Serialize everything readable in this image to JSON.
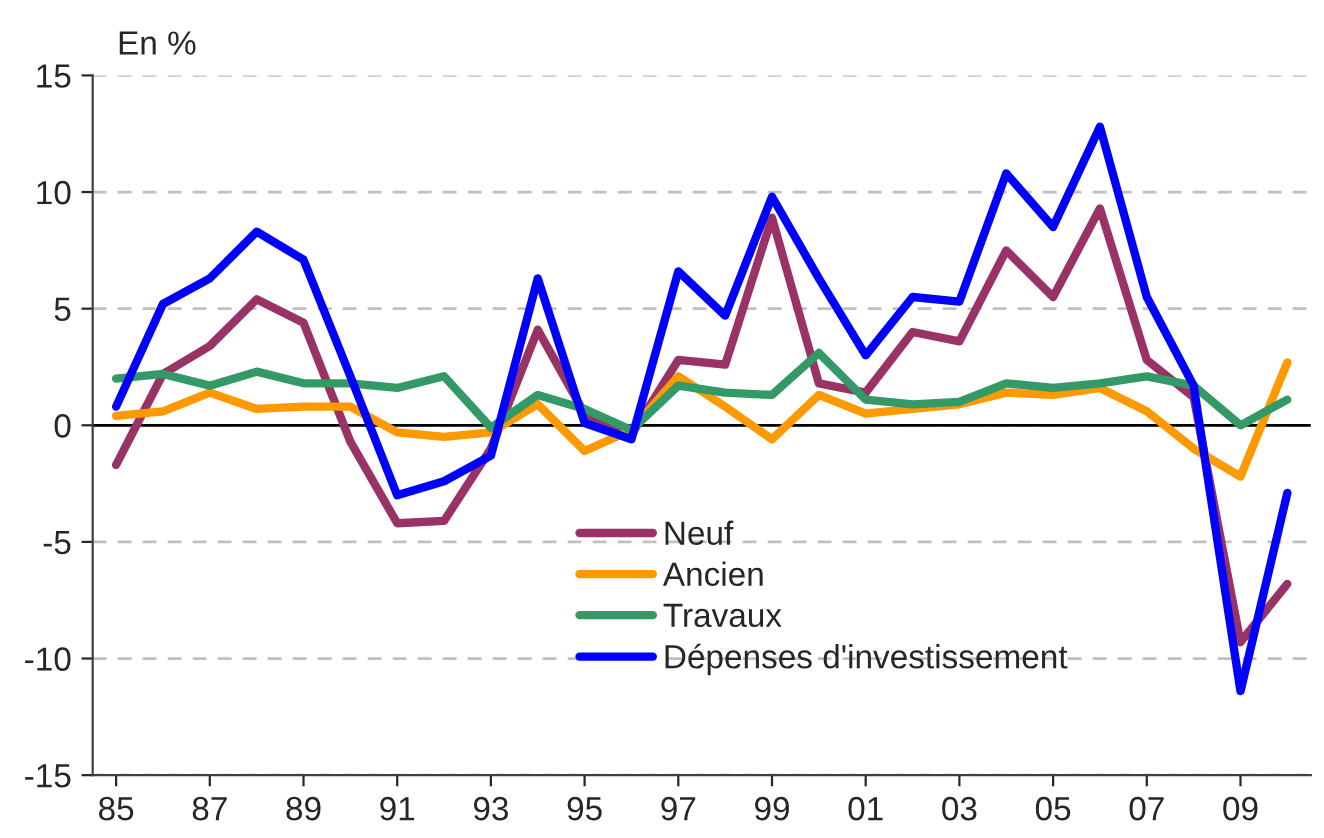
{
  "chart_data": {
    "type": "line",
    "ylabel": "En %",
    "x": [
      1985,
      1986,
      1987,
      1988,
      1989,
      1990,
      1991,
      1992,
      1993,
      1994,
      1995,
      1996,
      1997,
      1998,
      1999,
      2000,
      2001,
      2002,
      2003,
      2004,
      2005,
      2006,
      2007,
      2008,
      2009,
      2010
    ],
    "series": [
      {
        "name": "Neuf",
        "color": "#993366",
        "values": [
          -1.7,
          2.2,
          3.4,
          5.4,
          4.4,
          -0.7,
          -4.2,
          -4.1,
          -1.0,
          4.1,
          0.5,
          -0.4,
          2.8,
          2.6,
          8.9,
          1.8,
          1.4,
          4.0,
          3.6,
          7.5,
          5.5,
          9.3,
          2.8,
          1.2,
          -9.3,
          -6.8
        ]
      },
      {
        "name": "Ancien",
        "color": "#ff9900",
        "values": [
          0.4,
          0.6,
          1.4,
          0.7,
          0.8,
          0.8,
          -0.3,
          -0.5,
          -0.3,
          0.9,
          -1.1,
          -0.2,
          2.1,
          0.8,
          -0.6,
          1.3,
          0.5,
          0.7,
          0.9,
          1.4,
          1.3,
          1.6,
          0.6,
          -1.0,
          -2.2,
          2.7
        ]
      },
      {
        "name": "Travaux",
        "color": "#339966",
        "values": [
          2.0,
          2.2,
          1.7,
          2.3,
          1.8,
          1.8,
          1.6,
          2.1,
          -0.1,
          1.3,
          0.7,
          -0.2,
          1.7,
          1.4,
          1.3,
          3.1,
          1.1,
          0.9,
          1.0,
          1.8,
          1.6,
          1.8,
          2.1,
          1.7,
          0.0,
          1.1
        ]
      },
      {
        "name": "Dépenses d'investissement",
        "color": "#0000ff",
        "values": [
          0.8,
          5.2,
          6.3,
          8.3,
          7.1,
          2.1,
          -3.0,
          -2.4,
          -1.3,
          6.3,
          0.1,
          -0.6,
          6.6,
          4.7,
          9.8,
          6.3,
          3.0,
          5.5,
          5.3,
          10.8,
          8.5,
          12.8,
          5.5,
          1.7,
          -11.4,
          -2.9
        ]
      }
    ],
    "xlim": [
      1984.5,
      2010.5
    ],
    "xticks": [
      {
        "value": 1985,
        "label": "85"
      },
      {
        "value": 1987,
        "label": "87"
      },
      {
        "value": 1989,
        "label": "89"
      },
      {
        "value": 1991,
        "label": "91"
      },
      {
        "value": 1993,
        "label": "93"
      },
      {
        "value": 1995,
        "label": "95"
      },
      {
        "value": 1997,
        "label": "97"
      },
      {
        "value": 1999,
        "label": "99"
      },
      {
        "value": 2001,
        "label": "01"
      },
      {
        "value": 2003,
        "label": "03"
      },
      {
        "value": 2005,
        "label": "05"
      },
      {
        "value": 2007,
        "label": "07"
      },
      {
        "value": 2009,
        "label": "09"
      }
    ],
    "ylim": [
      -15,
      15
    ],
    "yticks": [
      -15,
      -10,
      -5,
      0,
      5,
      10,
      15
    ],
    "ref_lines": [
      {
        "axis": "y",
        "value": 0,
        "color": "#000000"
      }
    ],
    "grid": "y",
    "legend": "bottom",
    "marker": "none",
    "line_style": "solid"
  }
}
